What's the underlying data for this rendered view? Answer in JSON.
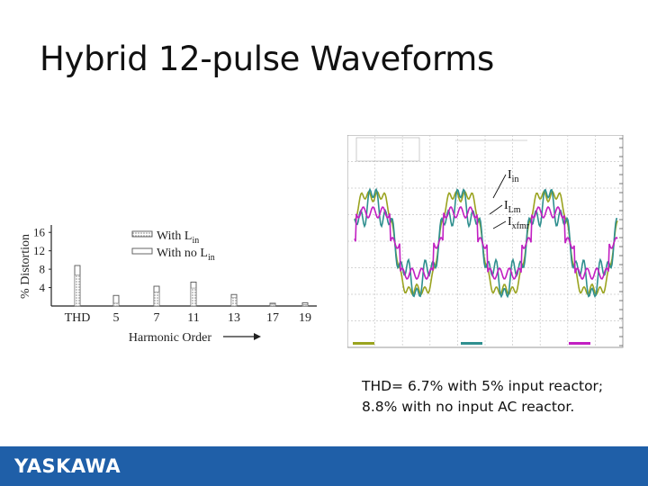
{
  "slide": {
    "title": "Hybrid 12-pulse Waveforms",
    "caption_line1": "THD= 6.7% with 5% input reactor;",
    "caption_line2": "8.8% with no input AC reactor.",
    "brand": "YASKAWA",
    "brand_color": "#1f5fa8"
  },
  "chart_data": [
    {
      "type": "bar",
      "title": "",
      "xlabel": "Harmonic Order",
      "ylabel": "% Distortion",
      "categories": [
        "THD",
        "5",
        "7",
        "11",
        "13",
        "17",
        "19"
      ],
      "yticks": [
        4,
        8,
        12,
        16
      ],
      "ylim": [
        0,
        18
      ],
      "grid": false,
      "legend_position": "top-center",
      "series": [
        {
          "name": "With L",
          "name_sub": "in",
          "values": [
            6.7,
            0.6,
            3.0,
            3.9,
            1.8,
            0.4,
            0.3
          ]
        },
        {
          "name": "With no L",
          "name_sub": "in",
          "values": [
            8.8,
            2.3,
            4.3,
            5.2,
            2.5,
            0.6,
            0.7
          ]
        }
      ]
    },
    {
      "type": "line",
      "title": "",
      "xlabel": "",
      "ylabel": "",
      "grid": true,
      "cycles": 3,
      "annotations": [
        {
          "label": "I",
          "sub": "in"
        },
        {
          "label": "I",
          "sub": "Lm"
        },
        {
          "label": "I",
          "sub": "xfmr"
        }
      ],
      "series": [
        {
          "name": "I_in",
          "color": "#9aa31f",
          "amplitude": 1.0
        },
        {
          "name": "I_Lm",
          "color": "#2f8f8f",
          "amplitude": 0.78
        },
        {
          "name": "I_xfmr",
          "color": "#c21fc2",
          "amplitude": 0.55
        }
      ]
    }
  ]
}
